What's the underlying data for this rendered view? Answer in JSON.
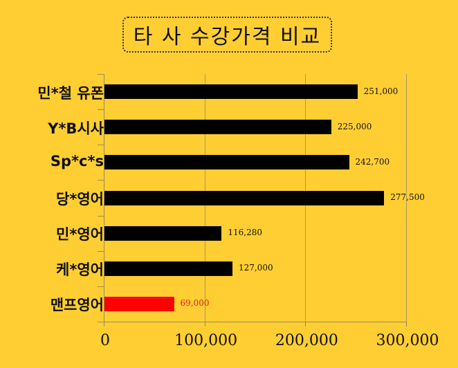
{
  "title": "타 사 수강가격 비교",
  "chart_data": {
    "type": "bar",
    "orientation": "horizontal",
    "title": "타 사 수강가격 비교",
    "categories": [
      "민*철 유폰",
      "Y*B시사",
      "Sp*c*s",
      "당*영어",
      "민*영어",
      "케*영어",
      "맨프영어"
    ],
    "values": [
      251000,
      225000,
      242700,
      277500,
      116280,
      127000,
      69000
    ],
    "value_labels": [
      "251,000",
      "225,000",
      "242,700",
      "277,500",
      "116,280",
      "127,000",
      "69,000"
    ],
    "bar_colors": [
      "#000000",
      "#000000",
      "#000000",
      "#000000",
      "#000000",
      "#000000",
      "#FF0000"
    ],
    "label_colors": [
      "#111111",
      "#111111",
      "#111111",
      "#111111",
      "#111111",
      "#111111",
      "#E02020"
    ],
    "xlabel": "",
    "ylabel": "",
    "xlim": [
      0,
      300000
    ],
    "x_ticks": [
      "0",
      "100,000",
      "200,000",
      "300,000"
    ],
    "grid": true,
    "legend": "none",
    "background": "#FFCE33"
  }
}
